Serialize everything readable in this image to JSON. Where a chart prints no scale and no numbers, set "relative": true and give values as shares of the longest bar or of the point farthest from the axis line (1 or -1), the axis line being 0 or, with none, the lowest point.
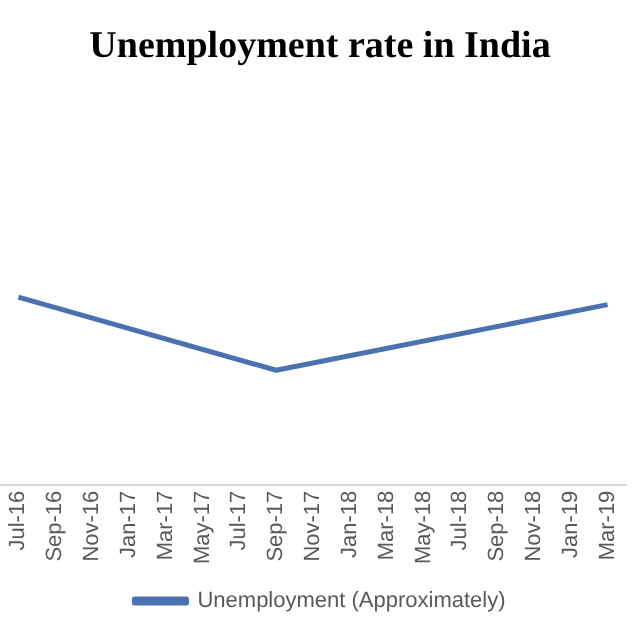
{
  "chart_data": {
    "type": "line",
    "title": "Unemployment rate in India",
    "relative": true,
    "categories": [
      "Jul-16",
      "Sep-16",
      "Nov-16",
      "Jan-17",
      "Mar-17",
      "May-17",
      "Jul-17",
      "Sep-17",
      "Nov-17",
      "Jan-18",
      "Mar-18",
      "May-18",
      "Jul-18",
      "Sep-18",
      "Nov-18",
      "Jan-19",
      "Mar-19"
    ],
    "series": [
      {
        "name": "Unemployment (Approximately)",
        "color": "#4a72b0",
        "values": [
          1,
          null,
          null,
          null,
          null,
          null,
          null,
          0.61,
          null,
          null,
          null,
          null,
          null,
          null,
          null,
          null,
          0.96
        ]
      }
    ],
    "legend": "bottom",
    "marker": "none"
  }
}
